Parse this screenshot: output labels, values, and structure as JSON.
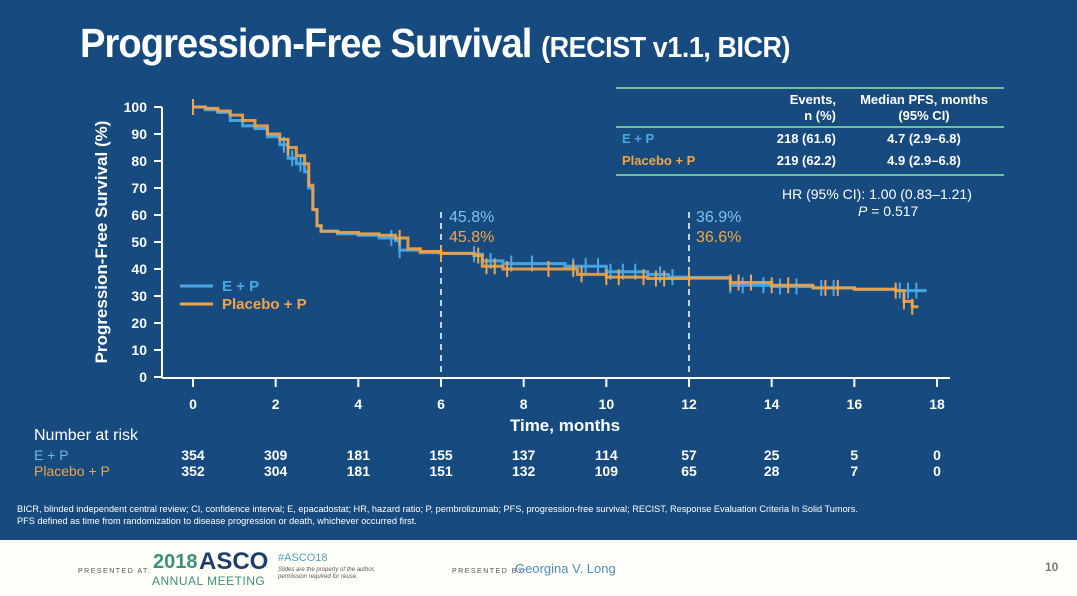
{
  "slide": {
    "title_main": "Progression-Free Survival",
    "title_sub": "(RECIST v1.1, BICR)",
    "footnote_line1": "BICR, blinded independent central review; CI, confidence interval; E, epacadostat; HR, hazard ratio; P, pembrolizumab; PFS, progression-free survival; RECIST, Response Evaluation Criteria In Solid Tumors.",
    "footnote_line2": "PFS defined as time from randomization to disease progression or death, whichever occurred first."
  },
  "colors": {
    "background": "#174a7e",
    "ep": "#4aa8e8",
    "placebo": "#f2a447",
    "table_rule": "#6fbf9a"
  },
  "summary_table": {
    "header_events_1": "Events,",
    "header_events_2": "n (%)",
    "header_median_1": "Median PFS, months",
    "header_median_2": "(95% CI)",
    "rows": [
      {
        "arm": "E + P",
        "events": "218 (61.6)",
        "median": "4.7 (2.9–6.8)"
      },
      {
        "arm": "Placebo + P",
        "events": "219 (62.2)",
        "median": "4.9 (2.9–6.8)"
      }
    ],
    "hr": "HR (95% CI): 1.00 (0.83–1.21)",
    "p_label": "P",
    "p_value": " = 0.517"
  },
  "number_at_risk": {
    "title": "Number at risk",
    "months": [
      0,
      2,
      4,
      6,
      8,
      10,
      12,
      14,
      16,
      18
    ],
    "rows": [
      {
        "arm": "E + P",
        "values": [
          "354",
          "309",
          "181",
          "155",
          "137",
          "114",
          "57",
          "25",
          "5",
          "0"
        ]
      },
      {
        "arm": "Placebo + P",
        "values": [
          "352",
          "304",
          "181",
          "151",
          "132",
          "109",
          "65",
          "28",
          "7",
          "0"
        ]
      }
    ]
  },
  "chart_data": {
    "type": "line",
    "title": "Progression-Free Survival (RECIST v1.1, BICR)",
    "xlabel": "Time, months",
    "ylabel": "Progression-Free Survival (%)",
    "xlim": [
      0,
      18
    ],
    "ylim": [
      0,
      100
    ],
    "xticks": [
      "0",
      "2",
      "4",
      "6",
      "8",
      "10",
      "12",
      "14",
      "16",
      "18"
    ],
    "yticks": [
      "0",
      "10",
      "20",
      "30",
      "40",
      "50",
      "60",
      "70",
      "80",
      "90",
      "100"
    ],
    "grid": false,
    "legend": {
      "position": "center-left",
      "entries": [
        "E + P",
        "Placebo + P"
      ]
    },
    "reference_lines": [
      6,
      12
    ],
    "annotations": [
      {
        "x": 6,
        "ep": "45.8%",
        "placebo": "45.8%"
      },
      {
        "x": 12,
        "ep": "36.9%",
        "placebo": "36.6%"
      }
    ],
    "series": [
      {
        "name": "E + P",
        "points": [
          [
            0,
            100
          ],
          [
            0.3,
            99
          ],
          [
            0.6,
            98
          ],
          [
            0.9,
            95
          ],
          [
            1.2,
            93
          ],
          [
            1.5,
            92
          ],
          [
            1.8,
            89
          ],
          [
            2.1,
            86
          ],
          [
            2.3,
            81
          ],
          [
            2.5,
            79
          ],
          [
            2.7,
            76
          ],
          [
            2.8,
            70
          ],
          [
            2.9,
            62
          ],
          [
            3.0,
            56
          ],
          [
            3.1,
            54
          ],
          [
            3.5,
            53
          ],
          [
            4.0,
            52.5
          ],
          [
            4.5,
            51.5
          ],
          [
            4.9,
            50.5
          ],
          [
            5.0,
            47
          ],
          [
            5.5,
            46
          ],
          [
            6,
            45.8
          ],
          [
            6.8,
            45.5
          ],
          [
            7,
            43
          ],
          [
            7.5,
            42
          ],
          [
            8,
            42
          ],
          [
            9,
            41
          ],
          [
            10,
            39
          ],
          [
            11,
            38
          ],
          [
            11.5,
            37
          ],
          [
            12,
            36.9
          ],
          [
            13,
            34
          ],
          [
            14,
            33.5
          ],
          [
            15,
            33
          ],
          [
            16,
            32.5
          ],
          [
            17,
            32
          ],
          [
            17.6,
            32
          ]
        ],
        "censor_x": [
          0,
          2.2,
          2.4,
          2.6,
          4.8,
          5.0,
          6,
          6.8,
          7.2,
          7.7,
          8.2,
          9.2,
          9.5,
          9.8,
          10.1,
          10.4,
          10.7,
          11.3,
          11.6,
          12,
          13,
          13.3,
          13.8,
          14.2,
          14.6,
          15.2,
          15.5,
          17.1,
          17.3,
          17.5
        ]
      },
      {
        "name": "Placebo + P",
        "points": [
          [
            0,
            100
          ],
          [
            0.3,
            99.5
          ],
          [
            0.6,
            98.5
          ],
          [
            0.9,
            97
          ],
          [
            1.2,
            95
          ],
          [
            1.5,
            93
          ],
          [
            1.8,
            90
          ],
          [
            2.1,
            88
          ],
          [
            2.3,
            85
          ],
          [
            2.5,
            82
          ],
          [
            2.7,
            79
          ],
          [
            2.8,
            71
          ],
          [
            2.9,
            62
          ],
          [
            3.0,
            56
          ],
          [
            3.1,
            54
          ],
          [
            3.5,
            53.5
          ],
          [
            4.0,
            53
          ],
          [
            4.5,
            52.5
          ],
          [
            4.9,
            51.5
          ],
          [
            5.2,
            47.5
          ],
          [
            5.5,
            46.5
          ],
          [
            6,
            45.8
          ],
          [
            6.8,
            45
          ],
          [
            7,
            41
          ],
          [
            7.5,
            40
          ],
          [
            8,
            40
          ],
          [
            9,
            40
          ],
          [
            9.3,
            38
          ],
          [
            10,
            37
          ],
          [
            11,
            36.5
          ],
          [
            12,
            36.6
          ],
          [
            13,
            35
          ],
          [
            14,
            34
          ],
          [
            15,
            33
          ],
          [
            16,
            32.5
          ],
          [
            17,
            32
          ],
          [
            17.2,
            28
          ],
          [
            17.4,
            26
          ]
        ],
        "censor_x": [
          0,
          2.3,
          5.0,
          6,
          6.9,
          7.1,
          7.3,
          7.6,
          8.6,
          9.2,
          9.4,
          10.0,
          10.3,
          10.9,
          11.2,
          11.4,
          12,
          13.0,
          13.2,
          13.5,
          14.0,
          14.4,
          15.3,
          15.6,
          17.0,
          17.2,
          17.4
        ]
      }
    ]
  },
  "footer": {
    "presented_at_label": "PRESENTED AT:",
    "asco_year": "2018",
    "asco_name": "ASCO",
    "asco_meeting": "ANNUAL MEETING",
    "hashtag": "#ASCO18",
    "disclaimer_1": "Slides are the property of the author,",
    "disclaimer_2": "permission required for reuse.",
    "presented_by_label": "PRESENTED BY:",
    "presenter": "Georgina V. Long",
    "page_number": "10"
  }
}
